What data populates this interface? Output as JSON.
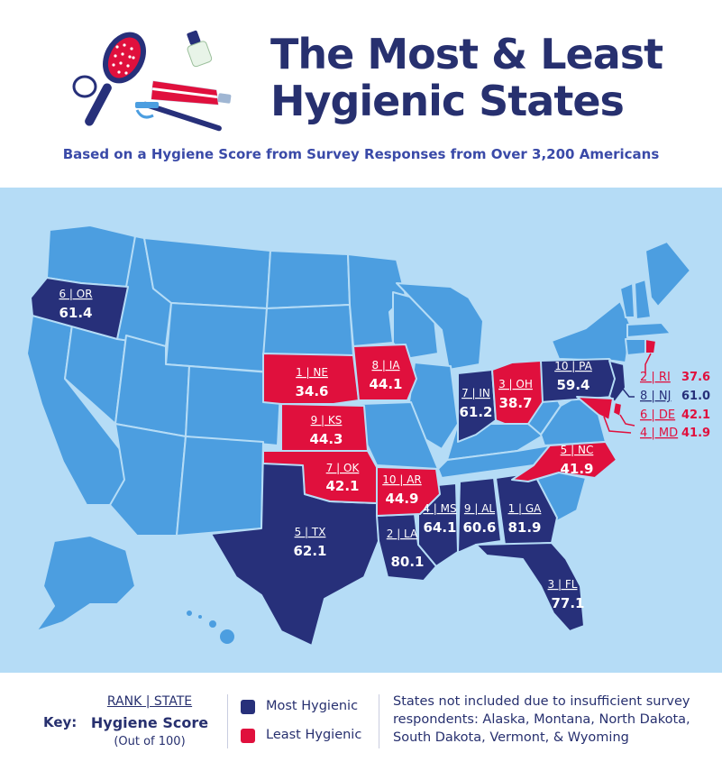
{
  "title": {
    "line1": "The Most & Least",
    "line2": "Hygienic States"
  },
  "subtitle": "Based on a Hygiene Score from Survey Responses from Over 3,200 Americans",
  "colors": {
    "most": "#27307a",
    "least": "#e0103d",
    "base_state": "#4c9ee0",
    "water": "#b5dcf6",
    "title": "#27306f"
  },
  "states": {
    "or": {
      "label": "6 | OR",
      "score": "61.4"
    },
    "ne": {
      "label": "1 | NE",
      "score": "34.6"
    },
    "ia": {
      "label": "8 | IA",
      "score": "44.1"
    },
    "ks": {
      "label": "9 | KS",
      "score": "44.3"
    },
    "ok": {
      "label": "7 | OK",
      "score": "42.1"
    },
    "ar": {
      "label": "10 | AR",
      "score": "44.9"
    },
    "tx": {
      "label": "5 | TX",
      "score": "62.1"
    },
    "la": {
      "label": "2 | LA",
      "score": "80.1"
    },
    "ms": {
      "label": "4 | MS",
      "score": "64.1"
    },
    "al": {
      "label": "9 | AL",
      "score": "60.6"
    },
    "ga": {
      "label": "1 | GA",
      "score": "81.9"
    },
    "fl": {
      "label": "3 | FL",
      "score": "77.1"
    },
    "in": {
      "label": "7 | IN",
      "score": "61.2"
    },
    "oh": {
      "label": "3 | OH",
      "score": "38.7"
    },
    "pa": {
      "label": "10 | PA",
      "score": "59.4"
    },
    "nc": {
      "label": "5 | NC",
      "score": "41.9"
    },
    "ri": {
      "label": "2 | RI",
      "score": "37.6"
    },
    "nj": {
      "label": "8 | NJ",
      "score": "61.0"
    },
    "de": {
      "label": "6 | DE",
      "score": "42.1"
    },
    "md": {
      "label": "4 | MD",
      "score": "41.9"
    }
  },
  "key": {
    "label": "Key:",
    "rank_state": "RANK | STATE",
    "score": "Hygiene Score",
    "out_of": "(Out of 100)",
    "most": "Most Hygienic",
    "least": "Least Hygienic",
    "note": "States not included due to insufficient survey respondents: Alaska, Montana, North Dakota, South Dakota, Vermont, & Wyoming"
  }
}
